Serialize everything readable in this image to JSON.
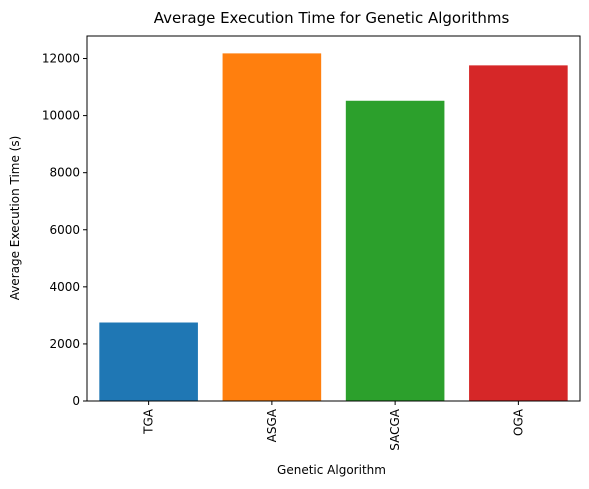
{
  "chart_data": {
    "type": "bar",
    "title": "Average Execution Time for Genetic Algorithms",
    "xlabel": "Genetic Algorithm",
    "ylabel": "Average Execution Time (s)",
    "categories": [
      "TGA",
      "ASGA",
      "SACGA",
      "OGA"
    ],
    "values": [
      2750,
      12180,
      10520,
      11760
    ],
    "colors": [
      "#1f77b4",
      "#ff7f0e",
      "#2ca02c",
      "#d62728"
    ],
    "ylim": [
      0,
      12789
    ],
    "yticks": [
      0,
      2000,
      4000,
      6000,
      8000,
      10000,
      12000
    ],
    "grid": false,
    "legend": "none"
  }
}
